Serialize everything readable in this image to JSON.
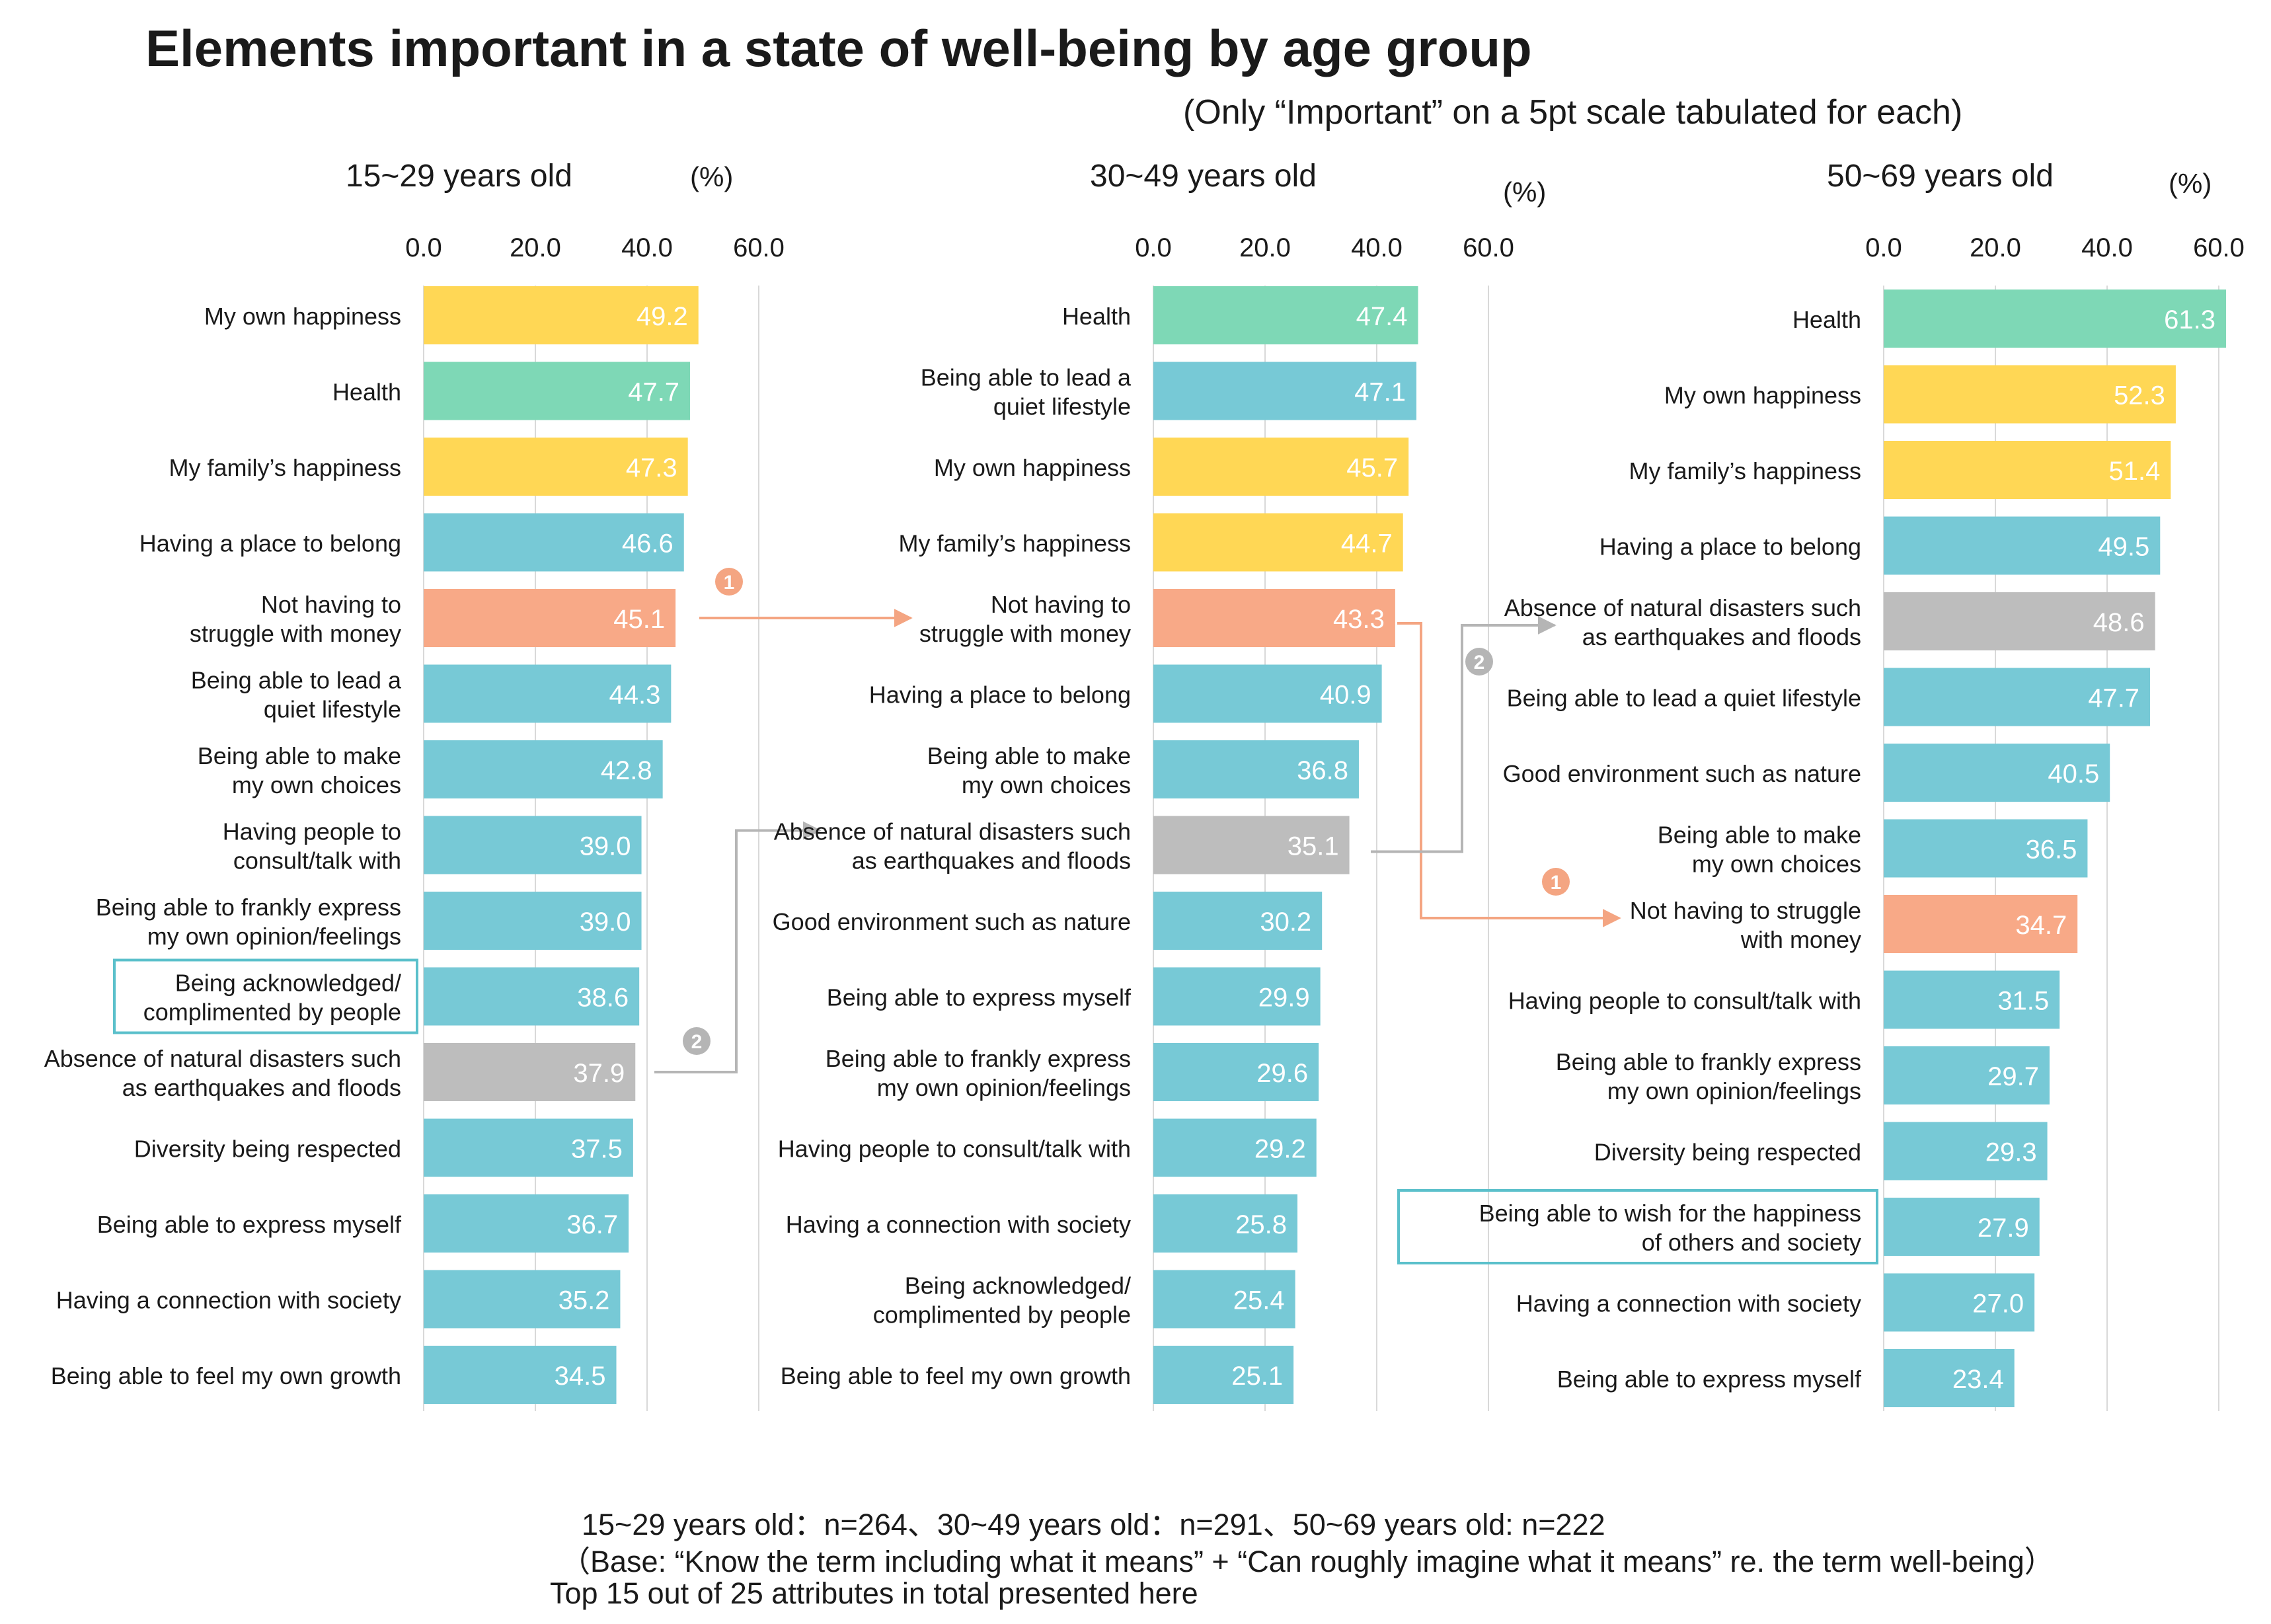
{
  "title": "Elements important in a state of well-being by age group",
  "subtitle": "(Only “Important” on a 5pt scale tabulated for each)",
  "footnotes": [
    "15~29 years old：n=264、30~49 years old：n=291、50~69 years old: n=222",
    "（Base: “Know the term including what it means” + “Can roughly imagine what it means” re. the term well-being）",
    "Top 15 out of 25 attributes in total presented here"
  ],
  "colors": {
    "yellow": "#FFD755",
    "green": "#7ED8B6",
    "blue": "#77C9D6",
    "orange": "#F8A987",
    "gray": "#BDBDBD",
    "arrow_orange": "#F4A582",
    "arrow_gray": "#B5B5B5",
    "highlight_box": "#5BC0CB"
  },
  "chart_data": [
    {
      "type": "bar",
      "orientation": "horizontal",
      "panel_title": "15~29 years old",
      "unit": "(%)",
      "xlim": [
        0,
        60
      ],
      "ticks": [
        "0.0",
        "20.0",
        "40.0",
        "60.0"
      ],
      "grid": true,
      "categories": [
        "My own happiness",
        "Health",
        "My family’s happiness",
        "Having a place to belong",
        "Not having to\nstruggle with money",
        "Being able to lead a\nquiet lifestyle",
        "Being able to make\nmy own choices",
        "Having people to\nconsult/talk with",
        "Being able to frankly express\nmy own opinion/feelings",
        "Being acknowledged/\ncomplimented by people",
        "Absence of natural disasters such\nas earthquakes and floods",
        "Diversity being respected",
        "Being able to express myself",
        "Having a connection with society",
        "Being able to feel my own growth"
      ],
      "values": [
        49.2,
        47.7,
        47.3,
        46.6,
        45.1,
        44.3,
        42.8,
        39.0,
        39.0,
        38.6,
        37.9,
        37.5,
        36.7,
        35.2,
        34.5
      ],
      "value_labels": [
        "49.2",
        "47.7",
        "47.3",
        "46.6",
        "45.1",
        "44.3",
        "42.8",
        "39.0",
        "39.0",
        "38.6",
        "37.9",
        "37.5",
        "36.7",
        "35.2",
        "34.5"
      ],
      "bar_colors": [
        "yellow",
        "green",
        "yellow",
        "blue",
        "orange",
        "blue",
        "blue",
        "blue",
        "blue",
        "blue",
        "gray",
        "blue",
        "blue",
        "blue",
        "blue"
      ],
      "highlighted": [
        9
      ]
    },
    {
      "type": "bar",
      "orientation": "horizontal",
      "panel_title": "30~49 years old",
      "unit": "(%)",
      "xlim": [
        0,
        60
      ],
      "ticks": [
        "0.0",
        "20.0",
        "40.0",
        "60.0"
      ],
      "grid": true,
      "categories": [
        "Health",
        "Being able to lead a\nquiet lifestyle",
        "My own happiness",
        "My family’s happiness",
        "Not having to\nstruggle with money",
        "Having a place to belong",
        "Being able to make\nmy own choices",
        "Absence of natural disasters such\nas earthquakes and floods",
        "Good environment such as nature",
        "Being able to express myself",
        "Being able to frankly express\nmy own opinion/feelings",
        "Having people to consult/talk with",
        "Having a connection with society",
        "Being acknowledged/\ncomplimented by people",
        "Being able to feel my own growth"
      ],
      "values": [
        47.4,
        47.1,
        45.7,
        44.7,
        43.3,
        40.9,
        36.8,
        35.1,
        30.2,
        29.9,
        29.6,
        29.2,
        25.8,
        25.4,
        25.1
      ],
      "value_labels": [
        "47.4",
        "47.1",
        "45.7",
        "44.7",
        "43.3",
        "40.9",
        "36.8",
        "35.1",
        "30.2",
        "29.9",
        "29.6",
        "29.2",
        "25.8",
        "25.4",
        "25.1"
      ],
      "bar_colors": [
        "green",
        "blue",
        "yellow",
        "yellow",
        "orange",
        "blue",
        "blue",
        "gray",
        "blue",
        "blue",
        "blue",
        "blue",
        "blue",
        "blue",
        "blue"
      ],
      "highlighted": []
    },
    {
      "type": "bar",
      "orientation": "horizontal",
      "panel_title": "50~69 years old",
      "unit": "(%)",
      "xlim": [
        0,
        60
      ],
      "ticks": [
        "0.0",
        "20.0",
        "40.0",
        "60.0"
      ],
      "grid": true,
      "categories": [
        "Health",
        "My own happiness",
        "My family’s happiness",
        "Having a place to belong",
        "Absence of natural disasters such\nas earthquakes and floods",
        "Being able to lead a quiet lifestyle",
        "Good environment such as nature",
        "Being able to make\nmy own choices",
        "Not having to struggle\nwith money",
        "Having people to consult/talk with",
        "Being able to frankly express\nmy own opinion/feelings",
        "Diversity being respected",
        "Being able to wish for the happiness\nof others and society",
        "Having a connection with society",
        "Being able to express myself"
      ],
      "values": [
        61.3,
        52.3,
        51.4,
        49.5,
        48.6,
        47.7,
        40.5,
        36.5,
        34.7,
        31.5,
        29.7,
        29.3,
        27.9,
        27.0,
        23.4
      ],
      "value_labels": [
        "61.3",
        "52.3",
        "51.4",
        "49.5",
        "48.6",
        "47.7",
        "40.5",
        "36.5",
        "34.7",
        "31.5",
        "29.7",
        "29.3",
        "27.9",
        "27.0",
        "23.4"
      ],
      "bar_colors": [
        "green",
        "yellow",
        "yellow",
        "blue",
        "gray",
        "blue",
        "blue",
        "blue",
        "orange",
        "blue",
        "blue",
        "blue",
        "blue",
        "blue",
        "blue"
      ],
      "highlighted": [
        12
      ]
    }
  ],
  "annotations": {
    "markers": [
      "1",
      "2"
    ]
  }
}
